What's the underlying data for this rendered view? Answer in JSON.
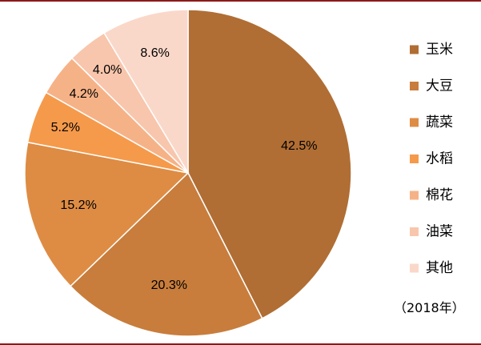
{
  "chart_data": {
    "type": "pie",
    "categories": [
      "玉米",
      "大豆",
      "蔬菜",
      "水稻",
      "棉花",
      "油菜",
      "其他"
    ],
    "values": [
      42.5,
      20.3,
      15.2,
      5.2,
      4.2,
      4.0,
      8.6
    ],
    "data_labels": [
      "42.5%",
      "20.3%",
      "15.2%",
      "5.2%",
      "4.2%",
      "4.0%",
      "8.6%"
    ],
    "colors": [
      "#b06e34",
      "#c87d3c",
      "#de8c44",
      "#f59a4b",
      "#f6b287",
      "#f8c6ac",
      "#fad8c9"
    ],
    "legend_placement": "right",
    "start_angle": "top",
    "direction": "clockwise"
  },
  "legend": {
    "note": "（2018年）"
  }
}
